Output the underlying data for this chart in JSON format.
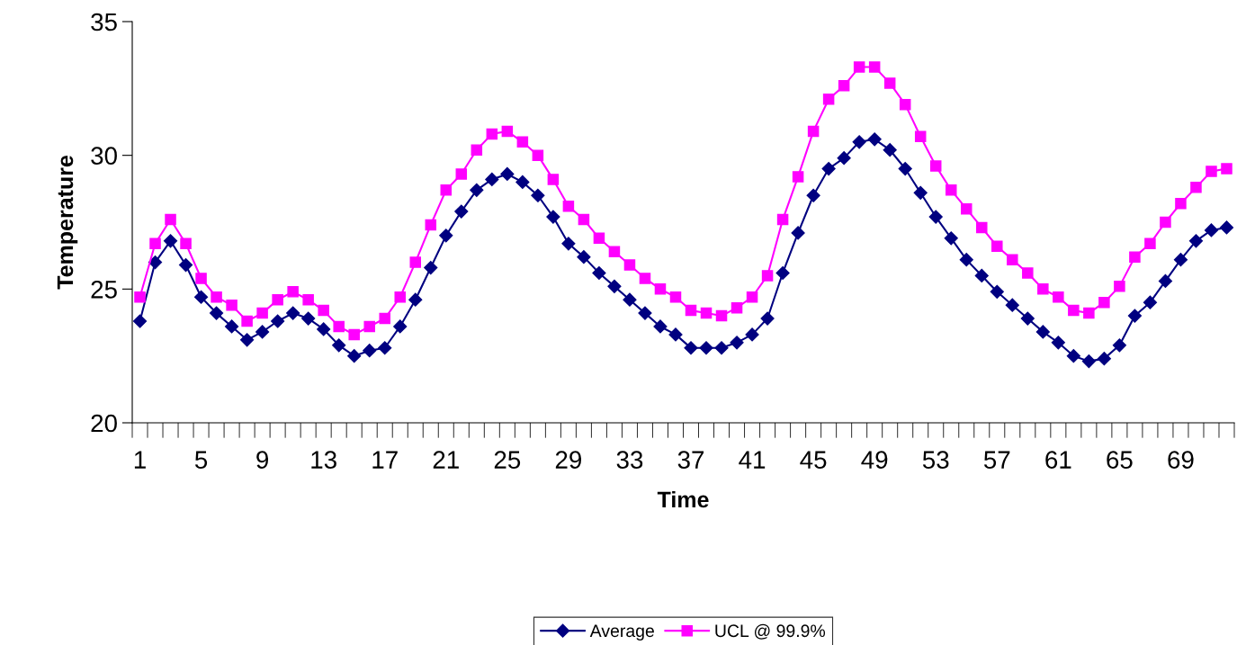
{
  "chart_data": {
    "type": "line",
    "xlabel": "Time",
    "ylabel": "Temperature",
    "categories": [
      "1",
      null,
      null,
      null,
      "5",
      null,
      null,
      null,
      "9",
      null,
      null,
      null,
      "13",
      null,
      null,
      null,
      "17",
      null,
      null,
      null,
      "21",
      null,
      null,
      null,
      "25",
      null,
      null,
      null,
      "29",
      null,
      null,
      null,
      "33",
      null,
      null,
      null,
      "37",
      null,
      null,
      null,
      "41",
      null,
      null,
      null,
      "45",
      null,
      null,
      null,
      "49",
      null,
      null,
      null,
      "53",
      null,
      null,
      null,
      "57",
      null,
      null,
      null,
      "61",
      null,
      null,
      null,
      "65",
      null,
      null,
      null,
      "69",
      null,
      null,
      null
    ],
    "series": [
      {
        "name": "Average",
        "color": "#000080",
        "marker": "diamond",
        "values": [
          23.8,
          26.0,
          26.8,
          25.9,
          24.7,
          24.1,
          23.6,
          23.1,
          23.4,
          23.8,
          24.1,
          23.9,
          23.5,
          22.9,
          22.5,
          22.7,
          22.8,
          23.6,
          24.6,
          25.8,
          27.0,
          27.9,
          28.7,
          29.1,
          29.3,
          29.0,
          28.5,
          27.7,
          26.7,
          26.2,
          25.6,
          25.1,
          24.6,
          24.1,
          23.6,
          23.3,
          22.8,
          22.8,
          22.8,
          23.0,
          23.3,
          23.9,
          25.6,
          27.1,
          28.5,
          29.5,
          29.9,
          30.5,
          30.6,
          30.2,
          29.5,
          28.6,
          27.7,
          26.9,
          26.1,
          25.5,
          24.9,
          24.4,
          23.9,
          23.4,
          23.0,
          22.5,
          22.3,
          22.4,
          22.9,
          24.0,
          24.5,
          25.3,
          26.1,
          26.8,
          27.2,
          27.3
        ]
      },
      {
        "name": "UCL @ 99.9%",
        "color": "#ff00ff",
        "marker": "square",
        "values": [
          24.7,
          26.7,
          27.6,
          26.7,
          25.4,
          24.7,
          24.4,
          23.8,
          24.1,
          24.6,
          24.9,
          24.6,
          24.2,
          23.6,
          23.3,
          23.6,
          23.9,
          24.7,
          26.0,
          27.4,
          28.7,
          29.3,
          30.2,
          30.8,
          30.9,
          30.5,
          30.0,
          29.1,
          28.1,
          27.6,
          26.9,
          26.4,
          25.9,
          25.4,
          25.0,
          24.7,
          24.2,
          24.1,
          24.0,
          24.3,
          24.7,
          25.5,
          27.6,
          29.2,
          30.9,
          32.1,
          32.6,
          33.3,
          33.3,
          32.7,
          31.9,
          30.7,
          29.6,
          28.7,
          28.0,
          27.3,
          26.6,
          26.1,
          25.6,
          25.0,
          24.7,
          24.2,
          24.1,
          24.5,
          25.1,
          26.2,
          26.7,
          27.5,
          28.2,
          28.8,
          29.4,
          29.5
        ]
      }
    ],
    "ylim": [
      20,
      35
    ],
    "yticks": [
      20,
      25,
      30,
      35
    ],
    "grid": false,
    "legend": "bottom",
    "line_style": "solid"
  }
}
